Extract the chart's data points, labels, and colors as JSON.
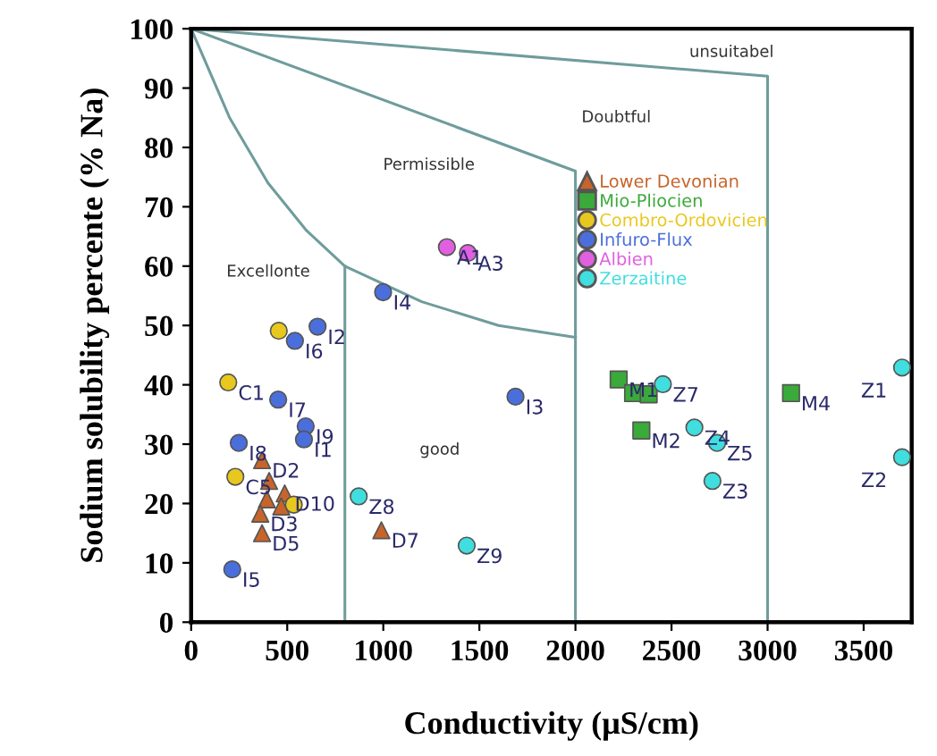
{
  "chart_data": {
    "type": "scatter",
    "xlabel": "Conductivity (μS/cm)",
    "ylabel": "Sodium solubility percente (% Na)",
    "xlim": [
      0,
      3750
    ],
    "xticks": [
      0,
      500,
      1000,
      1500,
      2000,
      2500,
      3000,
      3500
    ],
    "ylim": [
      0,
      100
    ],
    "yticks": [
      0,
      10,
      20,
      30,
      40,
      50,
      60,
      70,
      80,
      90,
      100
    ],
    "grid": false,
    "legend": "top right",
    "series": [
      {
        "type": "line",
        "color": "#6f9c9c",
        "marker": "none",
        "x": [
          0,
          200,
          400,
          600,
          800,
          1200,
          1600,
          2000
        ],
        "values": [
          100,
          85,
          74,
          66,
          60,
          54,
          50,
          48
        ]
      },
      {
        "type": "line",
        "color": "#6f9c9c",
        "marker": "none",
        "x": [
          0,
          2000,
          2000
        ],
        "values": [
          100,
          76,
          0
        ]
      },
      {
        "type": "line",
        "color": "#6f9c9c",
        "marker": "none",
        "x": [
          0,
          3000,
          3000
        ],
        "values": [
          100,
          92,
          0
        ]
      },
      {
        "type": "line",
        "color": "#6f9c9c",
        "marker": "none",
        "x": [
          800,
          800
        ],
        "values": [
          0,
          60
        ]
      },
      {
        "name": "Lower Devonian",
        "color": "#c8642a",
        "marker": "triangle",
        "x": [
          369,
          406,
          394,
          487,
          469,
          360,
          369,
          990
        ],
        "values": [
          27.3,
          23.8,
          20.7,
          21.7,
          19.5,
          18.3,
          15.0,
          15.5
        ]
      },
      {
        "name": "Mio-Pliocien",
        "color": "#3aaa3a",
        "marker": "square",
        "x": [
          2225,
          2300,
          2381,
          2343,
          3122
        ],
        "values": [
          40.9,
          38.6,
          38.4,
          32.3,
          38.6
        ]
      },
      {
        "name": "Combro-Ordovicien",
        "color": "#e8c81e",
        "marker": "circle",
        "x": [
          456,
          193,
          230,
          534
        ],
        "values": [
          49.1,
          40.4,
          24.5,
          19.8
        ]
      },
      {
        "name": "Infuro-Flux",
        "color": "#4a6fdc",
        "marker": "circle",
        "x": [
          999,
          658,
          540,
          453,
          596,
          587,
          248,
          214,
          1688
        ],
        "values": [
          55.6,
          49.8,
          47.4,
          37.5,
          33.0,
          30.8,
          30.2,
          8.9,
          38.0
        ]
      },
      {
        "name": "Albien",
        "color": "#e060e0",
        "marker": "circle",
        "x": [
          1331,
          1440
        ],
        "values": [
          63.2,
          62.2
        ]
      },
      {
        "name": "Zerzaitine",
        "color": "#40dede",
        "marker": "circle",
        "x": [
          2455,
          2619,
          2737,
          2713,
          3700,
          3700,
          872,
          1434
        ],
        "values": [
          40.1,
          32.8,
          30.2,
          23.8,
          42.9,
          27.8,
          21.2,
          12.9
        ]
      }
    ],
    "annotations": [
      "Excellonte",
      "Permissible",
      "Doubtful",
      "unsuitabel",
      "good",
      {
        "text": "D2",
        "x": 369,
        "y": 27.3
      },
      {
        "text": "D10",
        "x": 487,
        "y": 21.7
      },
      {
        "text": "D3",
        "x": 360,
        "y": 18.3
      },
      {
        "text": "D5",
        "x": 369,
        "y": 15.0
      },
      {
        "text": "D7",
        "x": 990,
        "y": 15.5
      },
      {
        "text": "M1",
        "x": 2225,
        "y": 40.9
      },
      {
        "text": "M2",
        "x": 2343,
        "y": 32.3
      },
      {
        "text": "M4",
        "x": 3122,
        "y": 38.6
      },
      {
        "text": "C1",
        "x": 193,
        "y": 40.4
      },
      {
        "text": "C5",
        "x": 230,
        "y": 24.5
      },
      {
        "text": "I4",
        "x": 999,
        "y": 55.6
      },
      {
        "text": "I2",
        "x": 658,
        "y": 49.8
      },
      {
        "text": "I6",
        "x": 540,
        "y": 47.4
      },
      {
        "text": "I7",
        "x": 453,
        "y": 37.5
      },
      {
        "text": "I9",
        "x": 596,
        "y": 33.0
      },
      {
        "text": "I1",
        "x": 587,
        "y": 30.8
      },
      {
        "text": "I8",
        "x": 248,
        "y": 30.2
      },
      {
        "text": "I5",
        "x": 214,
        "y": 8.9
      },
      {
        "text": "I3",
        "x": 1688,
        "y": 38.0
      },
      {
        "text": "A1",
        "x": 1331,
        "y": 63.2
      },
      {
        "text": "A3",
        "x": 1440,
        "y": 62.2
      },
      {
        "text": "Z7",
        "x": 2455,
        "y": 40.1
      },
      {
        "text": "Z4",
        "x": 2619,
        "y": 32.8
      },
      {
        "text": "Z5",
        "x": 2737,
        "y": 30.2
      },
      {
        "text": "Z3",
        "x": 2713,
        "y": 23.8
      },
      {
        "text": "Z1",
        "x": 3700,
        "y": 42.9
      },
      {
        "text": "Z2",
        "x": 3700,
        "y": 27.8
      },
      {
        "text": "Z8",
        "x": 872,
        "y": 21.2
      },
      {
        "text": "Z9",
        "x": 1434,
        "y": 12.9
      }
    ]
  }
}
